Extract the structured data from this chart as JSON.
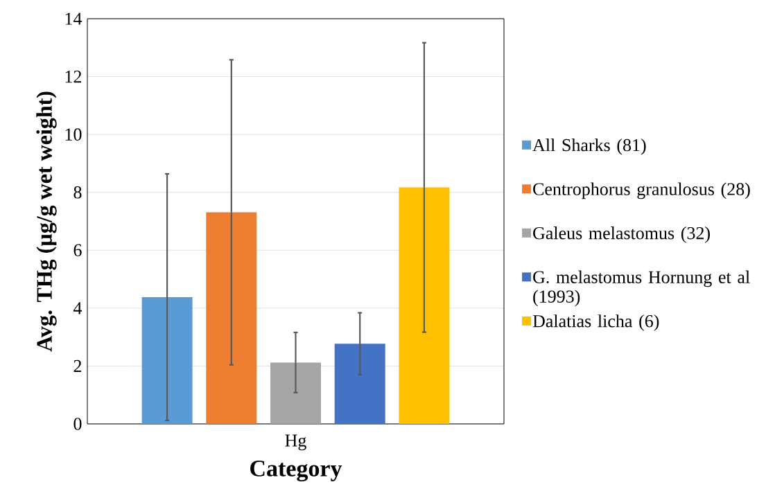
{
  "chart_data": {
    "type": "bar",
    "xlabel": "Category",
    "ylabel": "Avg. THg (µg/g wet weight)",
    "categories": [
      "Hg"
    ],
    "series": [
      {
        "name": "All Sharks (81)",
        "color": "#5b9bd5",
        "values": [
          4.38
        ],
        "errors": [
          4.26
        ]
      },
      {
        "name": "Centrophorus granulosus (28)",
        "color": "#ed7d31",
        "values": [
          7.31
        ],
        "errors": [
          5.27
        ]
      },
      {
        "name": "Galeus melastomus (32)",
        "color": "#a5a5a5",
        "values": [
          2.12
        ],
        "errors": [
          1.04
        ]
      },
      {
        "name": "G. melastomus Hornung et al (1993)",
        "color": "#4472c4",
        "values": [
          2.77
        ],
        "errors": [
          1.07
        ]
      },
      {
        "name": "Dalatias licha (6)",
        "color": "#ffc000",
        "values": [
          8.17
        ],
        "errors": [
          5.0
        ]
      }
    ],
    "ylim": [
      0,
      14
    ],
    "yticks": [
      0,
      2,
      4,
      6,
      8,
      10,
      12,
      14
    ],
    "grid": "y",
    "legend": "right"
  }
}
